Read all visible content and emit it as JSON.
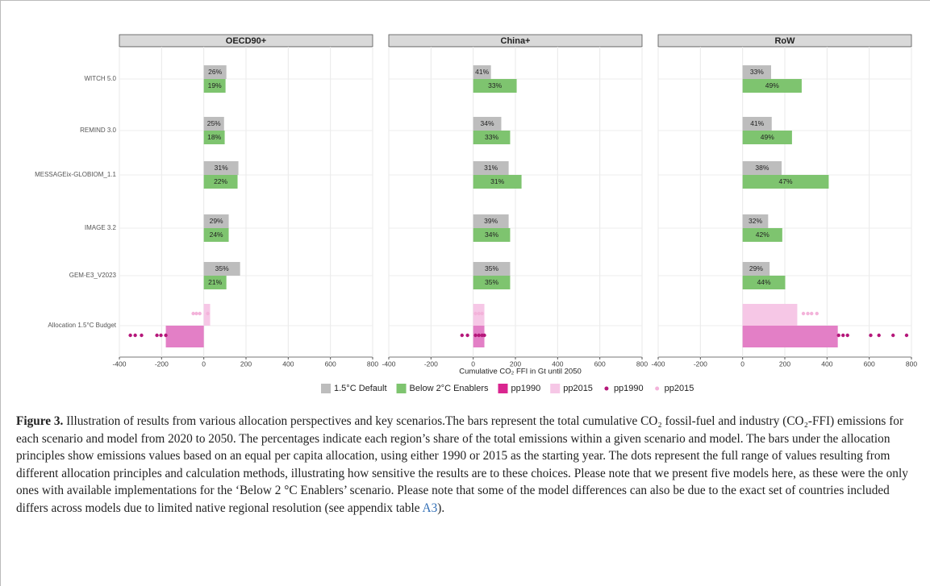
{
  "chart_data": {
    "type": "bar",
    "categories": [
      "WITCH 5.0",
      "REMIND 3.0",
      "MESSAGEix-GLOBIOM_1.1",
      "IMAGE 3.2",
      "GEM-E3_V2023",
      "Allocation 1.5°C Budget"
    ],
    "xlabel": "Cumulative CO₂ FFI in Gt until 2050",
    "xlim": [
      -400,
      800
    ],
    "xticks": [
      -400,
      -200,
      0,
      200,
      400,
      600,
      800
    ],
    "grid": true,
    "series": [
      {
        "name": "1.5°C Default",
        "color": "#bdbdbd"
      },
      {
        "name": "Below 2°C Enablers",
        "color": "#7ec46f"
      },
      {
        "name": "pp1990",
        "color": "#e37fc6"
      },
      {
        "name": "pp2015",
        "color": "#f6c7e6"
      }
    ],
    "dot_series": [
      {
        "name": "pp1990",
        "color": "#b5177a"
      },
      {
        "name": "pp2015",
        "color": "#f3b3da"
      }
    ],
    "facets": [
      {
        "title": "OECD90+",
        "values": [
          [
            107,
            96,
            164,
            118,
            172,
            null
          ],
          [
            103,
            99,
            160,
            118,
            107,
            null
          ],
          [
            null,
            null,
            null,
            null,
            null,
            -180
          ],
          [
            null,
            null,
            null,
            null,
            null,
            30
          ]
        ],
        "share_labels": [
          [
            "26%",
            "25%",
            "31%",
            "29%",
            "35%"
          ],
          [
            "19%",
            "18%",
            "22%",
            "24%",
            "21%"
          ]
        ],
        "dots": [
          [
            -348,
            -325,
            -295,
            -222,
            -203,
            -180
          ],
          [
            -50,
            -35,
            -19,
            19
          ]
        ]
      },
      {
        "title": "China+",
        "values": [
          [
            84,
            133,
            168,
            168,
            175,
            null
          ],
          [
            206,
            175,
            229,
            175,
            175,
            null
          ],
          [
            null,
            null,
            null,
            null,
            null,
            53
          ],
          [
            null,
            null,
            null,
            null,
            null,
            53
          ]
        ],
        "share_labels": [
          [
            "41%",
            "34%",
            "31%",
            "39%",
            "35%"
          ],
          [
            "33%",
            "33%",
            "31%",
            "34%",
            "35%"
          ]
        ],
        "dots": [
          [
            -53,
            -27,
            11,
            27,
            42,
            53
          ],
          [
            11,
            27,
            42
          ]
        ]
      },
      {
        "title": "RoW",
        "values": [
          [
            135,
            138,
            185,
            121,
            128,
            null
          ],
          [
            280,
            234,
            408,
            188,
            202,
            null
          ],
          [
            null,
            null,
            null,
            null,
            null,
            451
          ],
          [
            null,
            null,
            null,
            null,
            null,
            259
          ]
        ],
        "share_labels": [
          [
            "33%",
            "41%",
            "38%",
            "32%",
            "29%"
          ],
          [
            "49%",
            "49%",
            "47%",
            "42%",
            "44%"
          ]
        ],
        "dots": [
          [
            455,
            476,
            497,
            607,
            646,
            713,
            777
          ],
          [
            288,
            309,
            327,
            352
          ]
        ]
      }
    ]
  },
  "caption": {
    "label": "Figure 3.",
    "text": " Illustration of results from various allocation perspectives and key scenarios.The bars represent the total cumulative CO₂ fossil-fuel and industry (CO₂-FFI) emissions for each scenario and model from 2020 to 2050. The percentages indicate each region’s share of the total emissions within a given scenario and model. The bars under the allocation principles show emissions values based on an equal per capita allocation, using either 1990 or 2015 as the starting year. The dots represent the full range of values resulting from different allocation principles and calculation methods, illustrating how sensitive the results are to these choices. Please note that we present five models here, as these were the only ones with available implementations for the ‘Below 2 °C Enablers’ scenario. Please note that some of the model differences can also be due to the exact set of countries included differs across models due to limited native regional resolution (see appendix table ",
    "link": "A3",
    "end": ")."
  }
}
